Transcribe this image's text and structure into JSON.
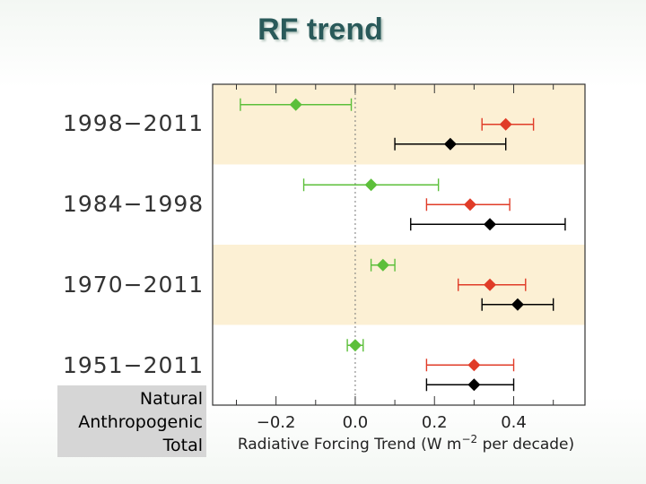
{
  "slide": {
    "title": "RF trend"
  },
  "chart_data": {
    "type": "scatter",
    "subtype": "horizontal-errorbar",
    "title": "RF trend",
    "xlabel_parts": {
      "prefix": "Radiative  Forcing  Trend  (W  m",
      "superscript": "−2",
      "suffix": "  per decade)"
    },
    "xlim": [
      -0.36,
      0.58
    ],
    "xticks": [
      -0.2,
      0.0,
      0.2,
      0.4
    ],
    "xtick_labels": [
      "−0.2",
      "0.0",
      "0.2",
      "0.4"
    ],
    "zero_line": "dotted",
    "grid": false,
    "band_colors": [
      "#fcf0d4",
      "#ffffff",
      "#fcf0d4",
      "#ffffff"
    ],
    "legend": {
      "placement": "bottom-left",
      "entries": [
        "Natural",
        "Anthropogenic",
        "Total"
      ]
    },
    "series": [
      {
        "name": "Natural",
        "color": "#5cbf3a"
      },
      {
        "name": "Anthropogenic",
        "color": "#e03c28"
      },
      {
        "name": "Total",
        "color": "#000000"
      }
    ],
    "periods": [
      {
        "label": "1998−2011",
        "natural": {
          "value": -0.15,
          "low": -0.29,
          "high": -0.01
        },
        "anthropogenic": {
          "value": 0.38,
          "low": 0.32,
          "high": 0.45
        },
        "total": {
          "value": 0.24,
          "low": 0.1,
          "high": 0.38
        }
      },
      {
        "label": "1984−1998",
        "natural": {
          "value": 0.04,
          "low": -0.13,
          "high": 0.21
        },
        "anthropogenic": {
          "value": 0.29,
          "low": 0.18,
          "high": 0.39
        },
        "total": {
          "value": 0.34,
          "low": 0.14,
          "high": 0.53
        }
      },
      {
        "label": "1970−2011",
        "natural": {
          "value": 0.07,
          "low": 0.04,
          "high": 0.1
        },
        "anthropogenic": {
          "value": 0.34,
          "low": 0.26,
          "high": 0.43
        },
        "total": {
          "value": 0.41,
          "low": 0.32,
          "high": 0.5
        }
      },
      {
        "label": "1951−2011",
        "natural": {
          "value": 0.0,
          "low": -0.02,
          "high": 0.02
        },
        "anthropogenic": {
          "value": 0.3,
          "low": 0.18,
          "high": 0.4
        },
        "total": {
          "value": 0.3,
          "low": 0.18,
          "high": 0.4
        }
      }
    ]
  }
}
